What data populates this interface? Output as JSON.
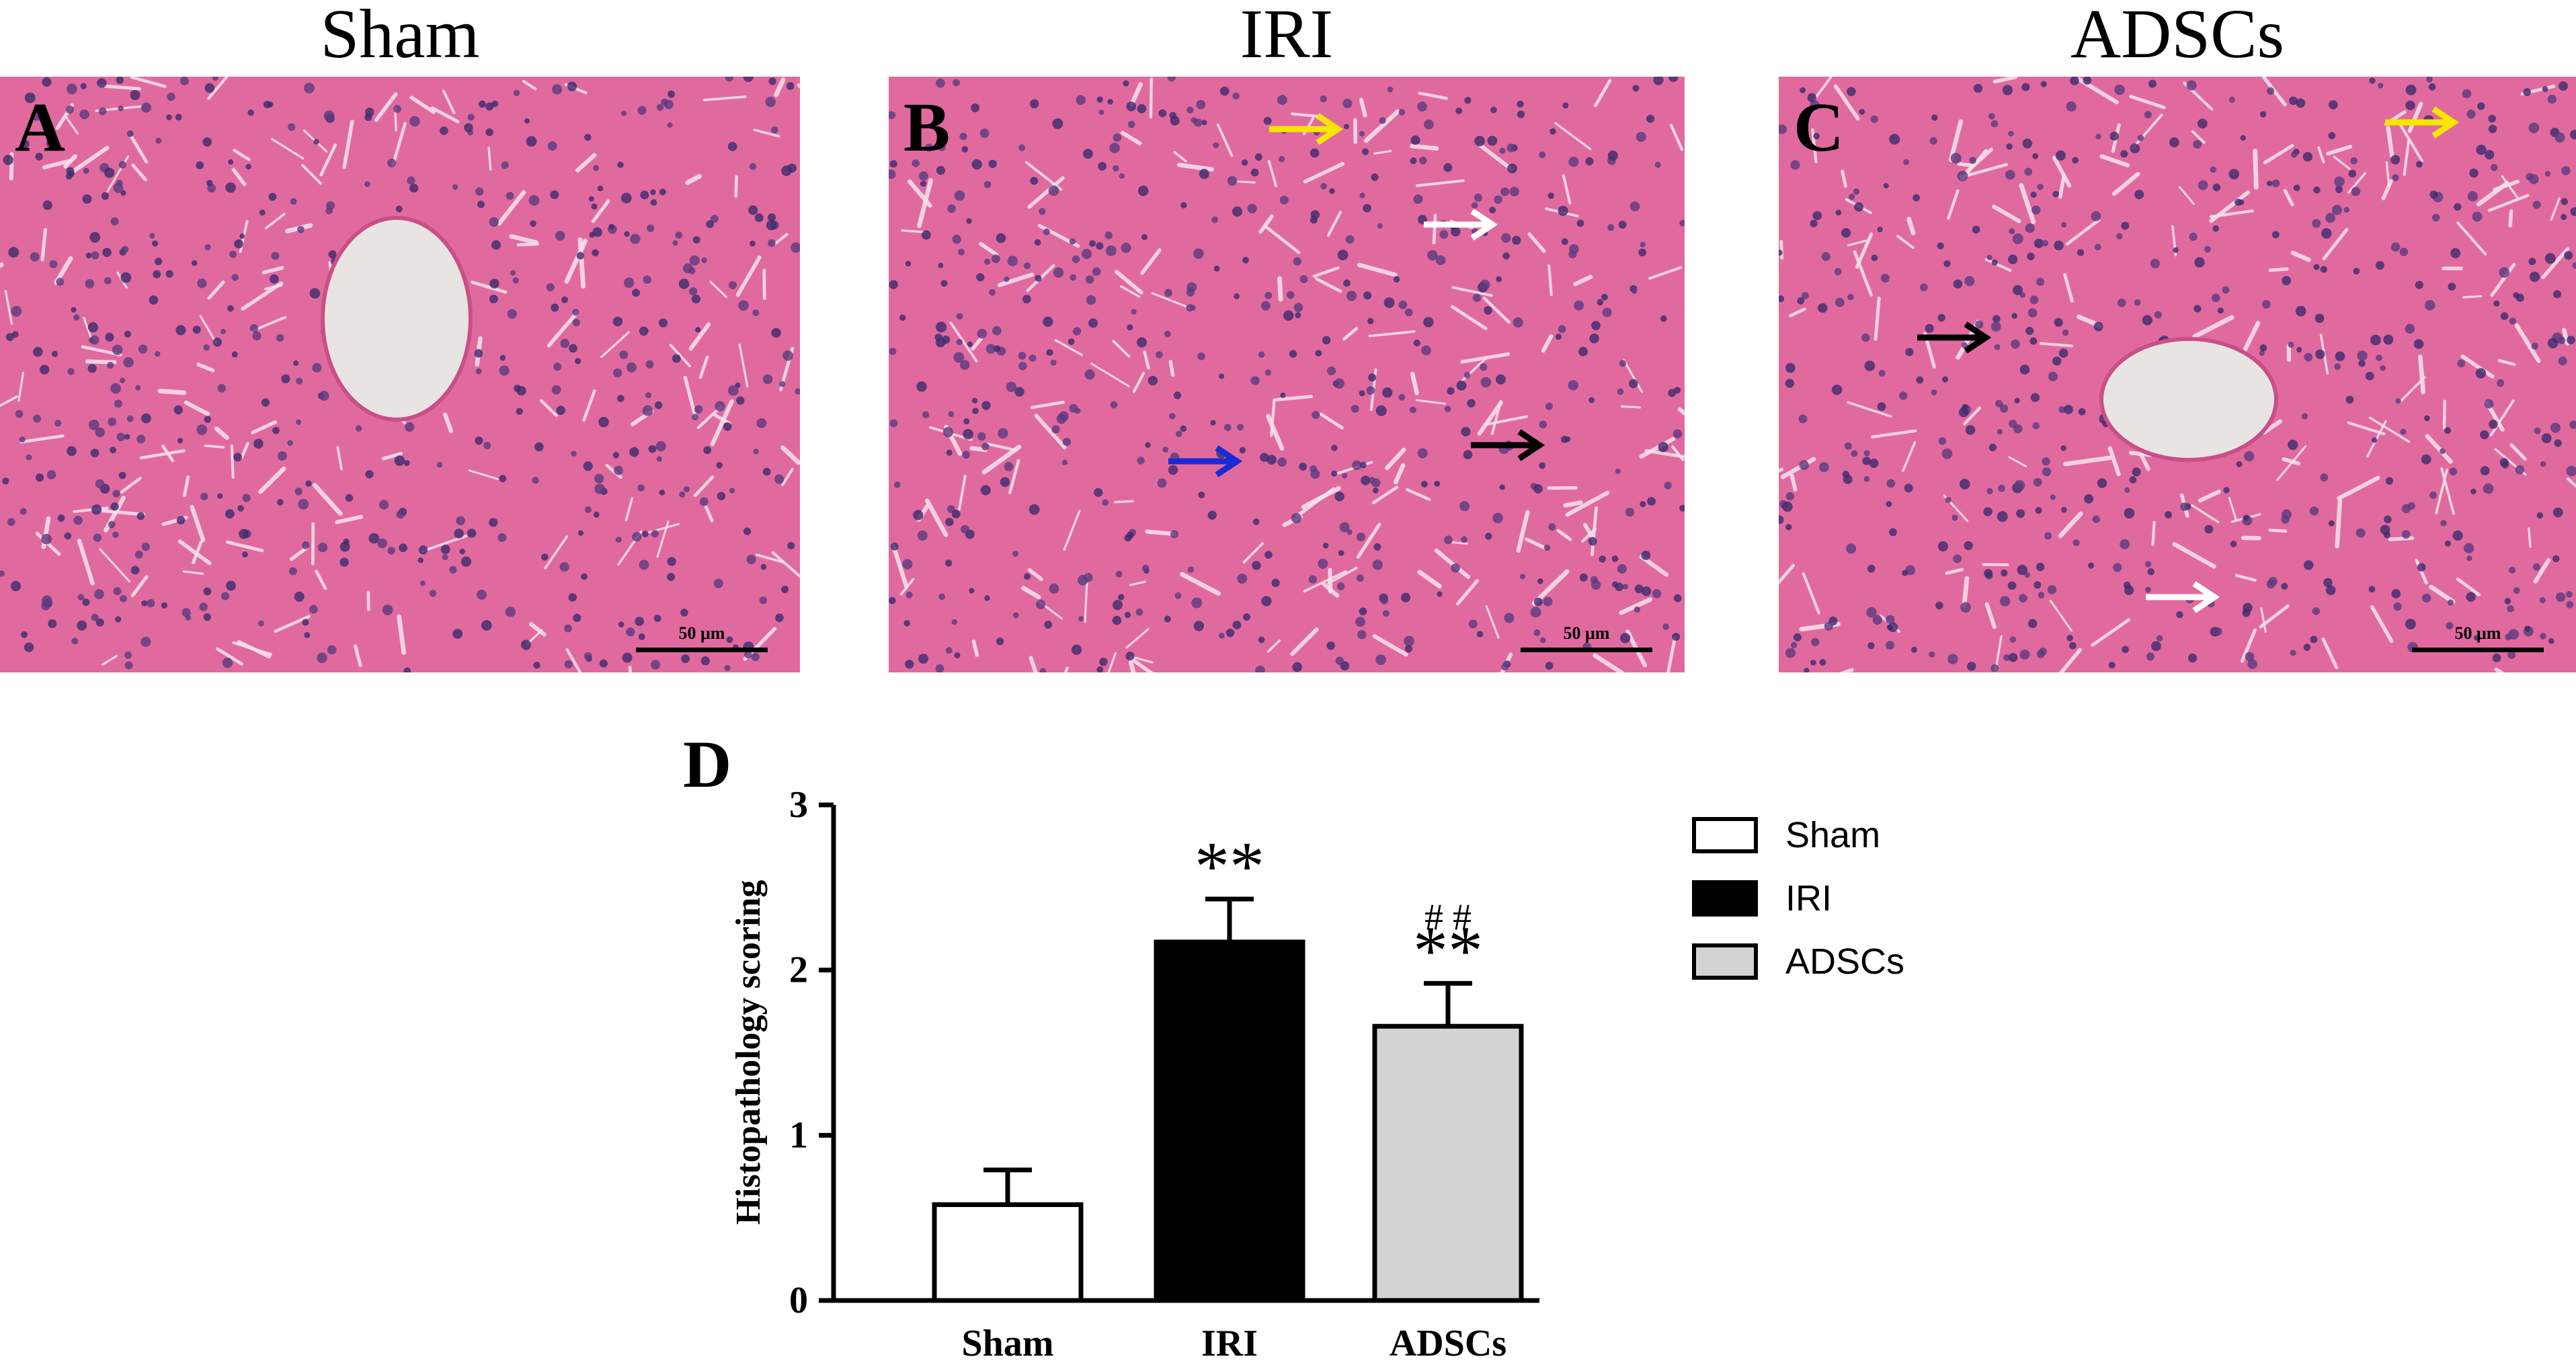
{
  "panels": [
    {
      "title": "Sham",
      "letter": "A",
      "scale": "50 μm"
    },
    {
      "title": "IRI",
      "letter": "B",
      "scale": "50 μm"
    },
    {
      "title": "ADSCs",
      "letter": "C",
      "scale": "50 μm"
    }
  ],
  "colors": {
    "tissue": "#e06a9e",
    "arrow_yellow": "#f7e600",
    "arrow_white": "#ffffff",
    "arrow_black": "#000000",
    "arrow_blue": "#1a2bd6",
    "bar_sham": "#ffffff",
    "bar_iri": "#000000",
    "bar_adscs": "#d3d3d3"
  },
  "chart_data": {
    "type": "bar",
    "panel_letter": "D",
    "categories": [
      "Sham",
      "IRI",
      "ADSCs"
    ],
    "values": [
      0.58,
      2.17,
      1.66
    ],
    "errors": [
      0.21,
      0.26,
      0.26
    ],
    "significance": [
      "",
      "**",
      "**"
    ],
    "significance2": [
      "",
      "",
      "# #"
    ],
    "ylabel": "Histopathology scoring",
    "xlabel": "",
    "ylim": [
      0,
      3
    ],
    "yticks": [
      0,
      1,
      2,
      3
    ],
    "legend": [
      "Sham",
      "IRI",
      "ADSCs"
    ],
    "legend_position": "right",
    "grid": false
  }
}
